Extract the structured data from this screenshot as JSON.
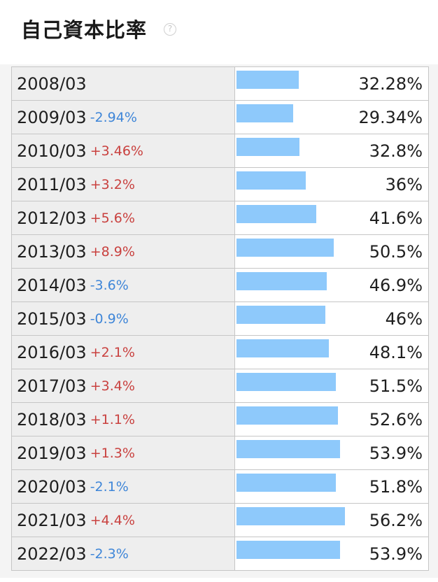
{
  "header": {
    "title": "自己資本比率",
    "help_icon": "?"
  },
  "colors": {
    "bar": "#8ec9fb",
    "increase": "#c9413f",
    "decrease": "#3f86d8"
  },
  "chart_data": {
    "type": "bar",
    "title": "自己資本比率",
    "unit": "%",
    "xlim": [
      0,
      100
    ],
    "categories": [
      "2008/03",
      "2009/03",
      "2010/03",
      "2011/03",
      "2012/03",
      "2013/03",
      "2014/03",
      "2015/03",
      "2016/03",
      "2017/03",
      "2018/03",
      "2019/03",
      "2020/03",
      "2021/03",
      "2022/03"
    ],
    "values": [
      32.28,
      29.34,
      32.8,
      36,
      41.6,
      50.5,
      46.9,
      46,
      48.1,
      51.5,
      52.6,
      53.9,
      51.8,
      56.2,
      53.9
    ],
    "value_labels": [
      "32.28%",
      "29.34%",
      "32.8%",
      "36%",
      "41.6%",
      "50.5%",
      "46.9%",
      "46%",
      "48.1%",
      "51.5%",
      "52.6%",
      "53.9%",
      "51.8%",
      "56.2%",
      "53.9%"
    ],
    "changes": [
      "",
      "-2.94%",
      "+3.46%",
      "+3.2%",
      "+5.6%",
      "+8.9%",
      "-3.6%",
      "-0.9%",
      "+2.1%",
      "+3.4%",
      "+1.1%",
      "+1.3%",
      "-2.1%",
      "+4.4%",
      "-2.3%"
    ]
  }
}
